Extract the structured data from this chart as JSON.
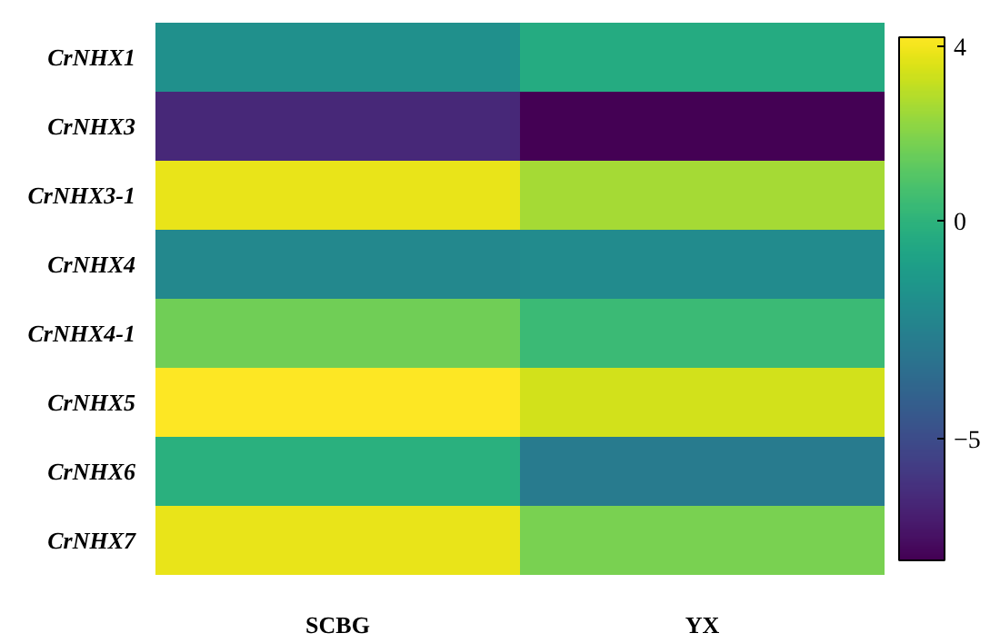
{
  "chart_data": {
    "type": "heatmap",
    "categories": [
      "SCBG",
      "YX"
    ],
    "y_categories": [
      "CrNHX1",
      "CrNHX3",
      "CrNHX3-1",
      "CrNHX4",
      "CrNHX4-1",
      "CrNHX5",
      "CrNHX6",
      "CrNHX7"
    ],
    "cells": [
      [
        -1.8,
        -0.4
      ],
      [
        -6.4,
        -7.8
      ],
      [
        3.8,
        2.6
      ],
      [
        -2.2,
        -2.0
      ],
      [
        1.6,
        0.4
      ],
      [
        4.2,
        3.4
      ],
      [
        -0.2,
        -2.8
      ],
      [
        3.8,
        1.8
      ]
    ],
    "clim": [
      -7.8,
      4.2
    ],
    "cticks": [
      -5,
      0,
      4
    ]
  }
}
